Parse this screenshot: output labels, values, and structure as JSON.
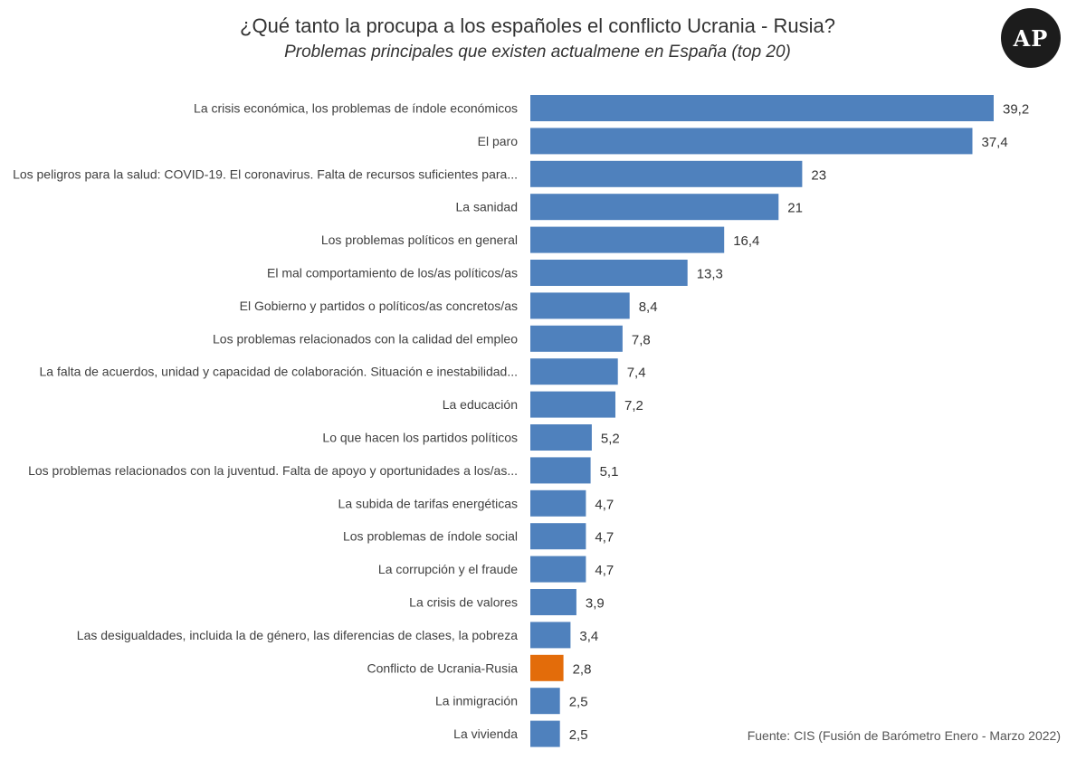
{
  "title": "¿Qué tanto la procupa a los españoles el conflicto Ucrania - Rusia?",
  "subtitle": "Problemas principales que existen actualmene en España (top 20)",
  "logo_text": "AP",
  "source": "Fuente: CIS (Fusión de Barómetro Enero - Marzo 2022)",
  "colors": {
    "bar": "#4f81bd",
    "highlight": "#e36c0a"
  },
  "chart_data": {
    "type": "bar",
    "orientation": "horizontal",
    "title": "¿Qué tanto la procupa a los españoles el conflicto Ucrania - Rusia?",
    "subtitle": "Problemas principales que existen actualmene en España (top 20)",
    "xlabel": "",
    "ylabel": "",
    "xlim": [
      0,
      39.2
    ],
    "grid": false,
    "legend": "none",
    "highlight_category": "Conflicto de Ucrania-Rusia",
    "categories": [
      "La crisis económica, los problemas de índole económicos",
      "El paro",
      "Los peligros para la salud: COVID-19. El coronavirus. Falta de recursos suficientes para...",
      "La sanidad",
      "Los problemas políticos en general",
      "El mal comportamiento de los/as políticos/as",
      "El Gobierno y partidos o políticos/as concretos/as",
      "Los problemas relacionados con la calidad del empleo",
      "La falta de acuerdos, unidad y capacidad de colaboración. Situación e inestabilidad...",
      "La educación",
      "Lo que hacen los partidos políticos",
      "Los problemas relacionados con la juventud. Falta de apoyo y oportunidades a los/as...",
      "La subida de tarifas energéticas",
      "Los problemas de índole social",
      "La corrupción y el fraude",
      "La crisis de valores",
      "Las desigualdades, incluida la de género, las diferencias de clases, la pobreza",
      "Conflicto de Ucrania-Rusia",
      "La inmigración",
      "La vivienda"
    ],
    "values": [
      39.2,
      37.4,
      23,
      21,
      16.4,
      13.3,
      8.4,
      7.8,
      7.4,
      7.2,
      5.2,
      5.1,
      4.7,
      4.7,
      4.7,
      3.9,
      3.4,
      2.8,
      2.5,
      2.5
    ],
    "value_labels": [
      "39,2",
      "37,4",
      "23",
      "21",
      "16,4",
      "13,3",
      "8,4",
      "7,8",
      "7,4",
      "7,2",
      "5,2",
      "5,1",
      "4,7",
      "4,7",
      "4,7",
      "3,9",
      "3,4",
      "2,8",
      "2,5",
      "2,5"
    ]
  }
}
